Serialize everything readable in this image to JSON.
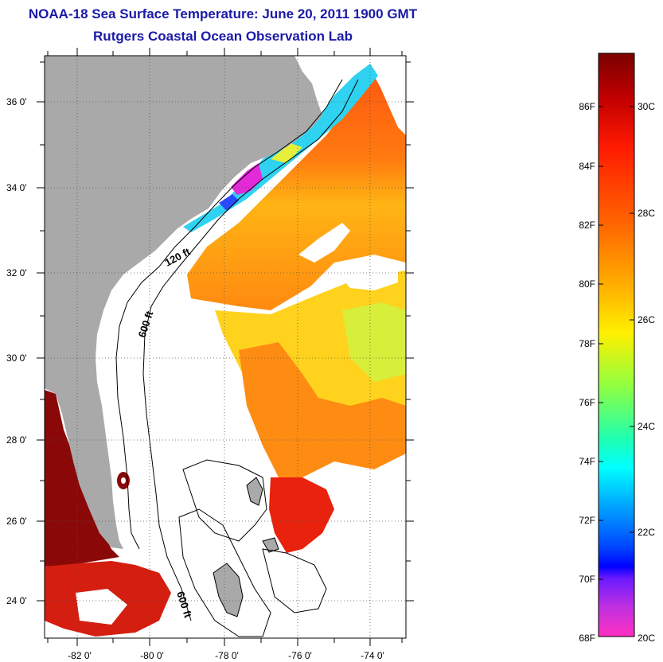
{
  "header": {
    "title": "NOAA-18 Sea Surface Temperature:  June 20, 2011 1900 GMT",
    "subtitle": "Rutgers Coastal Ocean Observation Lab"
  },
  "map": {
    "lon_ticks": [
      "-82 0'",
      "-80 0'",
      "-78 0'",
      "-76 0'",
      "-74 0'"
    ],
    "lat_ticks": [
      "36 0'",
      "34 0'",
      "32 0'",
      "30 0'",
      "28 0'",
      "26 0'",
      "24 0'"
    ],
    "contour_labels": [
      "120 ft",
      "600 ft",
      "600 ft"
    ]
  },
  "colorbar": {
    "fahrenheit_labels": [
      "86F",
      "84F",
      "82F",
      "80F",
      "78F",
      "76F",
      "74F",
      "72F",
      "70F",
      "68F"
    ],
    "celsius_labels": [
      "30C",
      "28C",
      "26C",
      "24C",
      "22C",
      "20C"
    ]
  },
  "colors": {
    "title": "#1a1aa8",
    "land": "#a9a9a9",
    "no_data": "#ffffff",
    "warm": "#d81e10",
    "hot": "#7a0000"
  }
}
